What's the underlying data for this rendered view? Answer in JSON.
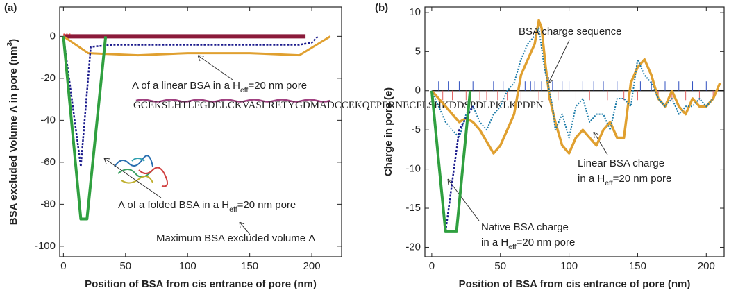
{
  "chart_data": [
    {
      "type": "line",
      "panel": "(a)",
      "xlabel": "Position of BSA from cis entrance of pore (nm)",
      "ylabel": [
        {
          "t": "BSA excluded Volume Λ in pore (nm"
        },
        {
          "sup": "3"
        },
        {
          "t": ")"
        }
      ],
      "xlim": [
        -3,
        224
      ],
      "ylim": [
        -105,
        14
      ],
      "xticks": [
        0,
        50,
        100,
        150,
        200
      ],
      "yticks": [
        -100,
        -80,
        -60,
        -40,
        -20,
        0
      ],
      "series": [
        {
          "color": "#8b1a3a",
          "width": 6,
          "x": [
            0,
            195
          ],
          "values": [
            0,
            0
          ]
        },
        {
          "color": "#e03030",
          "width": 1.5,
          "dash": "2,2",
          "x": [
            0,
            7
          ],
          "values": [
            1,
            1
          ]
        },
        {
          "color": "#e0a030",
          "width": 3,
          "x": [
            0,
            20,
            60,
            100,
            150,
            190,
            215
          ],
          "values": [
            0,
            -8,
            -9,
            -8,
            -8,
            -9,
            0
          ]
        },
        {
          "color": "#1a1a8c",
          "width": 2.5,
          "dash": "3,2",
          "x": [
            0,
            14,
            22,
            40,
            100,
            190,
            200,
            205
          ],
          "values": [
            0,
            -62,
            -5,
            -4,
            -4,
            -4,
            -3,
            0
          ]
        },
        {
          "color": "#30a040",
          "width": 4,
          "x": [
            0,
            14,
            19,
            34
          ],
          "values": [
            0,
            -87,
            -87,
            0
          ]
        },
        {
          "color": "#000000",
          "width": 1,
          "dash": "10,6",
          "x": [
            15,
            224
          ],
          "values": [
            -87,
            -87
          ]
        }
      ],
      "annotations": [
        [
          {
            "t": "Λ of a linear BSA in a H"
          },
          {
            "sub": "eff"
          },
          {
            "t": "=20 nm pore"
          }
        ],
        [
          {
            "t": "GCEKSLHTLFGDELCKVASLRETYGDMADCCEKQEPERNECFLSHKDDSPDLPKLKPDPN"
          }
        ],
        [
          {
            "t": "Λ of a folded BSA in a H"
          },
          {
            "sub": "eff"
          },
          {
            "t": "=20 nm pore"
          }
        ],
        [
          {
            "t": "Maximum BSA excluded volume Λ"
          }
        ]
      ]
    },
    {
      "type": "line",
      "panel": "(b)",
      "xlabel": "Position of BSA from cis entrance of pore (nm)",
      "ylabel": [
        {
          "t": "Charge in pore (e)"
        }
      ],
      "xlim": [
        -5,
        213
      ],
      "ylim": [
        -21.2,
        10.7
      ],
      "xticks": [
        0,
        50,
        100,
        150,
        200
      ],
      "yticks": [
        -20,
        -15,
        -10,
        -5,
        0,
        5,
        10
      ],
      "zero_line": 0,
      "series": [
        {
          "color": "#3050c0",
          "width": 1,
          "mode": "spikes",
          "x": [
            5,
            12,
            20,
            30,
            45,
            52,
            60,
            68,
            72,
            75,
            80,
            88,
            95,
            100,
            110,
            118,
            125,
            135,
            145,
            152,
            160,
            170,
            180,
            190,
            200
          ],
          "values": [
            1.2,
            1.2,
            1.2,
            1.2,
            1.2,
            1.2,
            1.2,
            1.2,
            1.2,
            1.2,
            1.2,
            1.2,
            1.2,
            1.2,
            1.2,
            1.2,
            1.2,
            1.2,
            1.2,
            1.2,
            1.2,
            1.2,
            1.2,
            1.2,
            1.2
          ]
        },
        {
          "color": "#e06060",
          "width": 1,
          "mode": "spikes",
          "x": [
            8,
            15,
            25,
            35,
            40,
            48,
            55,
            65,
            78,
            85,
            92,
            105,
            115,
            128,
            140,
            150,
            165,
            175,
            185,
            195,
            205
          ],
          "values": [
            -1.2,
            -1.2,
            -1.2,
            -1.2,
            -1.2,
            -1.2,
            -1.2,
            -1.2,
            -1.2,
            -1.2,
            -1.2,
            -1.2,
            -1.2,
            -1.2,
            -1.2,
            -1.2,
            -1.2,
            -1.2,
            -1.2,
            -1.2,
            -1.2
          ]
        },
        {
          "color": "#e0a030",
          "width": 3.5,
          "x": [
            0,
            5,
            10,
            15,
            20,
            25,
            30,
            35,
            40,
            45,
            50,
            55,
            60,
            65,
            70,
            75,
            78,
            80,
            83,
            86,
            90,
            95,
            100,
            105,
            110,
            115,
            120,
            125,
            130,
            135,
            140,
            145,
            150,
            155,
            160,
            165,
            170,
            175,
            180,
            185,
            190,
            195,
            200,
            205,
            210
          ],
          "values": [
            0,
            -1,
            -2,
            -3,
            -4,
            -3.5,
            -4,
            -5,
            -6.5,
            -8,
            -7,
            -5,
            -3,
            2,
            4,
            6,
            9,
            8,
            3,
            -1,
            -4,
            -7,
            -8,
            -6,
            -5,
            -6,
            -7,
            -5,
            -4,
            -6,
            -6,
            1,
            3,
            4,
            2,
            -1,
            -2,
            0,
            -2,
            -3,
            -1,
            -2,
            -2,
            -1,
            1
          ]
        },
        {
          "color": "#1a7aa8",
          "width": 2,
          "dash": "2,2",
          "x": [
            0,
            5,
            10,
            15,
            20,
            25,
            30,
            35,
            40,
            45,
            50,
            55,
            60,
            65,
            70,
            75,
            78,
            82,
            88,
            90,
            95,
            100,
            105,
            110,
            115,
            120,
            125,
            130,
            135,
            140,
            145,
            150,
            155,
            160,
            165,
            170,
            175,
            180,
            185,
            190,
            195,
            200,
            205
          ],
          "values": [
            0,
            -2,
            -4,
            -5,
            -6,
            -3,
            -2,
            -4,
            -5,
            -3,
            -2,
            0,
            1,
            4,
            6,
            7,
            8,
            3,
            -2,
            -5,
            -3,
            -6,
            -2,
            -1,
            -4,
            -3,
            -3,
            -5,
            -1,
            -1,
            -2,
            4,
            2,
            1,
            -1,
            -2,
            -1,
            -3,
            -2,
            -2,
            -1,
            -2,
            -1
          ]
        },
        {
          "color": "#1a1a8c",
          "width": 2.5,
          "dash": "3,2",
          "x": [
            0,
            10,
            20,
            30
          ],
          "values": [
            0,
            -18,
            -5,
            -2
          ]
        },
        {
          "color": "#30a040",
          "width": 4,
          "x": [
            0,
            10,
            18,
            28
          ],
          "values": [
            0,
            -18,
            -18,
            0
          ]
        }
      ],
      "annotations": [
        [
          {
            "t": "BSA charge sequence"
          }
        ],
        [
          {
            "t": "Linear BSA charge"
          }
        ],
        [
          {
            "t": "in a H"
          },
          {
            "sub": "eff"
          },
          {
            "t": "=20 nm pore"
          }
        ],
        [
          {
            "t": "Native BSA charge"
          }
        ],
        [
          {
            "t": "in a H"
          },
          {
            "sub": "eff"
          },
          {
            "t": "=20 nm pore"
          }
        ]
      ]
    }
  ]
}
